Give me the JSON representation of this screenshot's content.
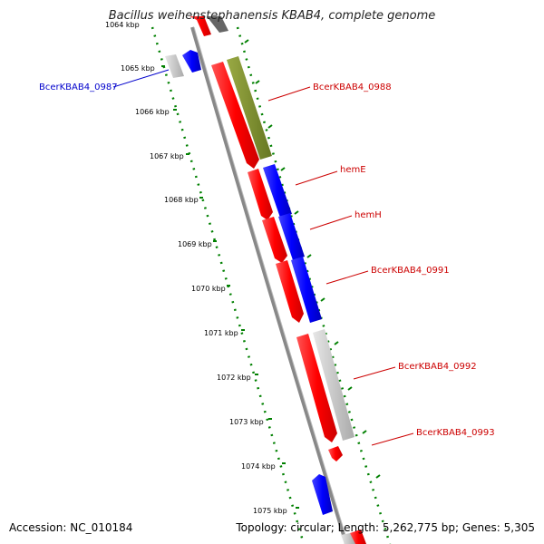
{
  "title": "Bacillus weihenstephanensis KBAB4, complete genome",
  "accession": "Accession: NC_010184",
  "topology": "Topology: circular; Length: 5,262,775 bp; Genes: 5,305",
  "colors": {
    "forward": "#ff0000",
    "reverse": "#0000ff",
    "rna": "#7a8c2a",
    "pseudo": "#c0c0c0",
    "backbone": "#888888",
    "ticks": "#008000"
  },
  "ticks": [
    "1064 kbp",
    "1065 kbp",
    "1066 kbp",
    "1067 kbp",
    "1068 kbp",
    "1069 kbp",
    "1070 kbp",
    "1071 kbp",
    "1072 kbp",
    "1073 kbp",
    "1074 kbp",
    "1075 kbp"
  ],
  "labels": [
    {
      "name": "BcerKBAB4_0987",
      "color": "#0000cc"
    },
    {
      "name": "BcerKBAB4_0988",
      "color": "#cc0000"
    },
    {
      "name": "hemE",
      "color": "#cc0000"
    },
    {
      "name": "hemH",
      "color": "#cc0000"
    },
    {
      "name": "BcerKBAB4_0991",
      "color": "#cc0000"
    },
    {
      "name": "BcerKBAB4_0992",
      "color": "#cc0000"
    },
    {
      "name": "BcerKBAB4_0993",
      "color": "#cc0000"
    }
  ]
}
